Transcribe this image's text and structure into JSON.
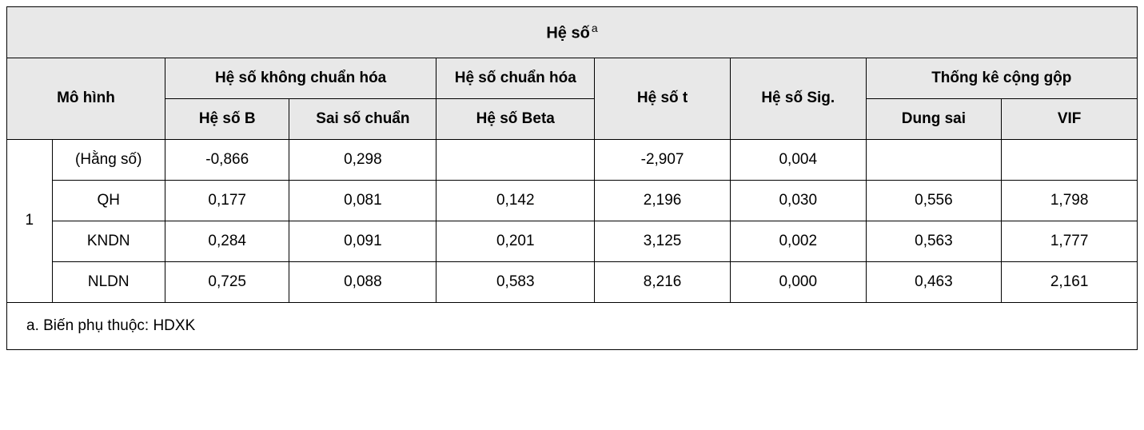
{
  "table": {
    "title": "Hệ số",
    "title_sup": "a",
    "headers": {
      "model": "Mô hình",
      "unstandardized": "Hệ số không chuẩn hóa",
      "standardized": "Hệ số chuẩn hóa",
      "t": "Hệ số t",
      "sig": "Hệ số Sig.",
      "collinearity": "Thống kê cộng gộp",
      "b": "Hệ số B",
      "std_error": "Sai số chuẩn",
      "beta": "Hệ số Beta",
      "tolerance": "Dung sai",
      "vif": "VIF"
    },
    "model_number": "1",
    "rows": [
      {
        "name": "(Hằng số)",
        "b": "-0,866",
        "se": "0,298",
        "beta": "",
        "t": "-2,907",
        "sig": "0,004",
        "tol": "",
        "vif": ""
      },
      {
        "name": "QH",
        "b": "0,177",
        "se": "0,081",
        "beta": "0,142",
        "t": "2,196",
        "sig": "0,030",
        "tol": "0,556",
        "vif": "1,798"
      },
      {
        "name": "KNDN",
        "b": "0,284",
        "se": "0,091",
        "beta": "0,201",
        "t": "3,125",
        "sig": "0,002",
        "tol": "0,563",
        "vif": "1,777"
      },
      {
        "name": "NLDN",
        "b": "0,725",
        "se": "0,088",
        "beta": "0,583",
        "t": "8,216",
        "sig": "0,000",
        "tol": "0,463",
        "vif": "2,161"
      }
    ],
    "footnote": "a. Biến phụ thuộc: HDXK"
  },
  "styling": {
    "header_bg": "#e8e8e8",
    "border_color": "#000000",
    "text_color": "#000000",
    "body_bg": "#ffffff",
    "font_size_cell": 19,
    "font_size_title": 20,
    "font_family": "Arial"
  }
}
